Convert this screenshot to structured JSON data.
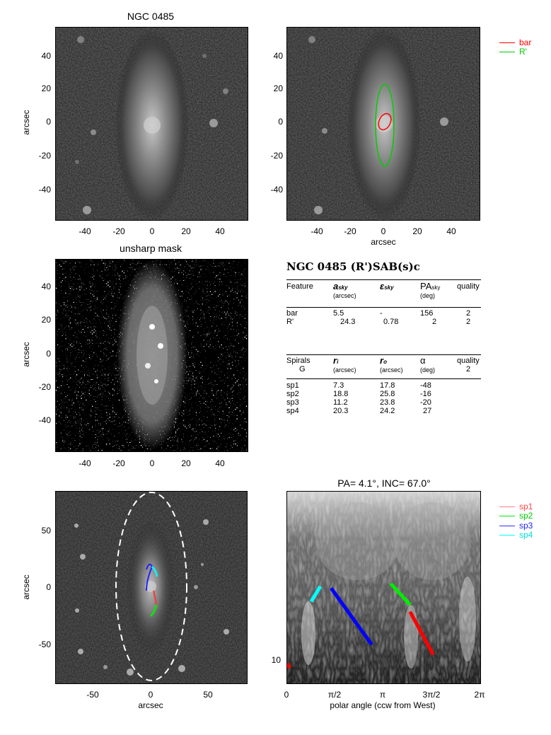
{
  "panels": {
    "top_left": {
      "title": "NGC 0485",
      "ylabel": "arcsec",
      "xticks": [
        "-40",
        "-20",
        "0",
        "20",
        "40"
      ],
      "yticks": [
        "40",
        "20",
        "0",
        "-20",
        "-40"
      ]
    },
    "top_right": {
      "xlabel": "arcsec",
      "xticks": [
        "-40",
        "-20",
        "0",
        "20",
        "40"
      ],
      "yticks": [
        "40",
        "20",
        "0",
        "-20",
        "-40"
      ],
      "legend": [
        {
          "label": "bar",
          "color": "#ff0000"
        },
        {
          "label": "R'",
          "color": "#00cc00"
        }
      ]
    },
    "mid_left": {
      "title": "unsharp mask",
      "ylabel": "arcsec",
      "xticks": [
        "-40",
        "-20",
        "0",
        "20",
        "40"
      ],
      "yticks": [
        "40",
        "20",
        "0",
        "-20",
        "-40"
      ]
    },
    "bottom_left": {
      "xlabel": "arcsec",
      "ylabel": "arcsec",
      "xticks": [
        "-50",
        "0",
        "50"
      ],
      "yticks": [
        "50",
        "0",
        "-50"
      ]
    },
    "bottom_right": {
      "title": "PA=   4.1°, INC=  67.0°",
      "xlabel": "polar angle (ccw from West)",
      "xticks": [
        "0",
        "π/2",
        "π",
        "3π/2",
        "2π"
      ],
      "yticks": [
        "10"
      ],
      "legend": [
        {
          "label": "sp1",
          "color": "#ff8080"
        },
        {
          "label": "sp2",
          "color": "#00ee00"
        },
        {
          "label": "sp3",
          "color": "#3333ff"
        },
        {
          "label": "sp4",
          "color": "#00ffff"
        }
      ]
    }
  },
  "table": {
    "heading": "NGC 0485  (R')SAB(s)c",
    "features_header": {
      "c1": "Feature",
      "c2": "a",
      "c2sub": "sky",
      "c2unit": "(arcsec)",
      "c3": "ε",
      "c3sub": "sky",
      "c4": "PA",
      "c4sub": "sky",
      "c4unit": "(deg)",
      "c5": "quality"
    },
    "features": [
      {
        "name": "bar",
        "a": "5.5",
        "e": "-",
        "pa": "156",
        "q": "2"
      },
      {
        "name": "R'",
        "a": "24.3",
        "e": "0.78",
        "pa": "2",
        "q": "2"
      }
    ],
    "spirals_header": {
      "c1": "Spirals",
      "c1b": "G",
      "c2": "r",
      "c2sub": "i",
      "c2unit": "(arcsec)",
      "c3": "r",
      "c3sub": "o",
      "c3unit": "(arcsec)",
      "c4": "α",
      "c4unit": "(deg)",
      "c5": "quality",
      "c5b": "2"
    },
    "spirals": [
      {
        "name": "sp1",
        "ri": "7.3",
        "ro": "17.8",
        "alpha": "-48"
      },
      {
        "name": "sp2",
        "ri": "18.8",
        "ro": "25.8",
        "alpha": "-16"
      },
      {
        "name": "sp3",
        "ri": "11.2",
        "ro": "23.8",
        "alpha": "-20"
      },
      {
        "name": "sp4",
        "ri": "20.3",
        "ro": "24.2",
        "alpha": "27"
      }
    ]
  },
  "chart_data": [
    {
      "type": "image",
      "title": "NGC 0485",
      "ylabel": "arcsec",
      "xlim": [
        -58,
        58
      ],
      "ylim": [
        -58,
        58
      ]
    },
    {
      "type": "image",
      "xlabel": "arcsec",
      "xlim": [
        -58,
        58
      ],
      "ylim": [
        -58,
        58
      ],
      "ellipses": [
        {
          "name": "bar",
          "a": 5.5,
          "pa": 156,
          "color": "#ff0000"
        },
        {
          "name": "R'",
          "a": 24.3,
          "e": 0.78,
          "pa": 2,
          "color": "#00cc00"
        }
      ]
    },
    {
      "type": "image",
      "title": "unsharp mask",
      "ylabel": "arcsec",
      "xlim": [
        -58,
        58
      ],
      "ylim": [
        -58,
        58
      ]
    },
    {
      "type": "image",
      "xlabel": "arcsec",
      "ylabel": "arcsec",
      "xlim": [
        -82,
        82
      ],
      "ylim": [
        -82,
        82
      ]
    },
    {
      "type": "line",
      "title": "PA=   4.1°, INC=  67.0°",
      "xlabel": "polar angle (ccw from West)",
      "xlim": [
        0,
        6.2832
      ],
      "series": [
        {
          "name": "sp1",
          "color": "#ff0000",
          "x": [
            4.0,
            4.75
          ],
          "y": [
            15.5,
            10.5
          ]
        },
        {
          "name": "sp1",
          "color": "#ff0000",
          "x": [
            0.0,
            0.08
          ],
          "y": [
            9.7,
            9.3
          ]
        },
        {
          "name": "sp2",
          "color": "#00ee00",
          "x": [
            3.37,
            4.0
          ],
          "y": [
            20.0,
            16.5
          ]
        },
        {
          "name": "sp3",
          "color": "#0000ff",
          "x": [
            1.43,
            2.75
          ],
          "y": [
            19.2,
            11.5
          ]
        },
        {
          "name": "sp4",
          "color": "#00ffff",
          "x": [
            0.78,
            1.08
          ],
          "y": [
            17.0,
            19.5
          ]
        }
      ]
    }
  ]
}
